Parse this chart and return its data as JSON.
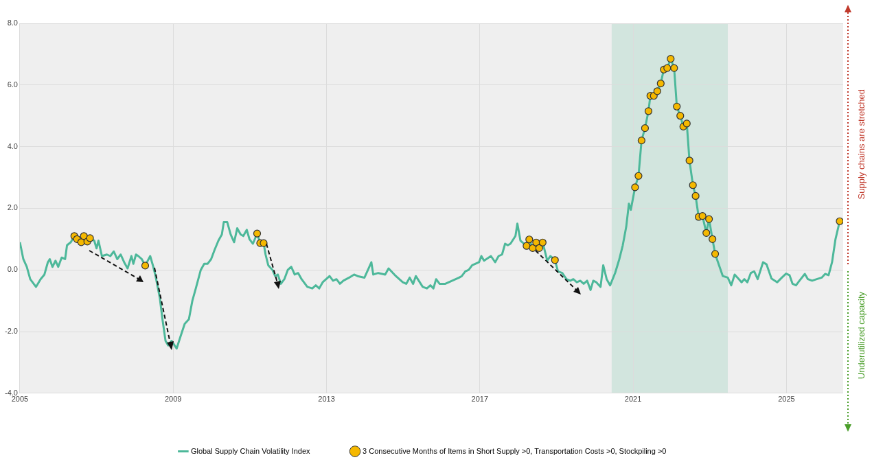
{
  "chart_data": {
    "type": "line",
    "xlim": [
      2005,
      2026.48
    ],
    "xticks": [
      2005,
      2009,
      2013,
      2017,
      2021,
      2025
    ],
    "ylim": [
      -4,
      8
    ],
    "yticks": [
      {
        "value": -4,
        "label": "-4.0"
      },
      {
        "value": -2,
        "label": "-2.0"
      },
      {
        "value": 0,
        "label": "0.0"
      },
      {
        "value": 2,
        "label": "2.0"
      },
      {
        "value": 4,
        "label": "4.0"
      },
      {
        "value": 6,
        "label": "6.0"
      },
      {
        "value": 8,
        "label": "8.0"
      }
    ],
    "grid": true,
    "legend": "bottom",
    "marker": "none",
    "bands": [
      {
        "axis": "x",
        "from": 2020.44,
        "to": 2023.47,
        "color": "#d2e5de"
      }
    ],
    "annotations": [
      "Supply chains are stretched",
      "Underutilized capacity"
    ],
    "series": [
      {
        "name": "Global Supply Chain Volatility Index",
        "color": "#4db89a",
        "x": [
          2005.0,
          2005.09,
          2005.18,
          2005.27,
          2005.42,
          2005.54,
          2005.64,
          2005.73,
          2005.78,
          2005.85,
          2005.93,
          2006.0,
          2006.09,
          2006.18,
          2006.23,
          2006.33,
          2006.42,
          2006.49,
          2006.6,
          2006.67,
          2006.76,
          2006.83,
          2006.94,
          2007.0,
          2007.05,
          2007.14,
          2007.27,
          2007.36,
          2007.45,
          2007.54,
          2007.63,
          2007.72,
          2007.81,
          2007.91,
          2007.96,
          2008.03,
          2008.09,
          2008.18,
          2008.27,
          2008.4,
          2008.47,
          2008.54,
          2008.65,
          2008.72,
          2008.8,
          2008.87,
          2008.96,
          2009.09,
          2009.18,
          2009.3,
          2009.41,
          2009.5,
          2009.59,
          2009.72,
          2009.81,
          2009.9,
          2009.99,
          2010.08,
          2010.18,
          2010.27,
          2010.32,
          2010.41,
          2010.5,
          2010.59,
          2010.67,
          2010.76,
          2010.83,
          2010.92,
          2010.99,
          2011.08,
          2011.19,
          2011.27,
          2011.36,
          2011.41,
          2011.48,
          2011.59,
          2011.66,
          2011.73,
          2011.81,
          2011.9,
          2011.99,
          2012.08,
          2012.17,
          2012.26,
          2012.35,
          2012.5,
          2012.63,
          2012.72,
          2012.81,
          2012.9,
          2013.08,
          2013.17,
          2013.26,
          2013.35,
          2013.44,
          2013.59,
          2013.72,
          2013.81,
          2013.99,
          2014.1,
          2014.17,
          2014.22,
          2014.35,
          2014.53,
          2014.62,
          2014.81,
          2014.9,
          2014.99,
          2015.08,
          2015.17,
          2015.26,
          2015.33,
          2015.51,
          2015.62,
          2015.71,
          2015.79,
          2015.86,
          2015.95,
          2016.1,
          2016.28,
          2016.46,
          2016.53,
          2016.62,
          2016.71,
          2016.8,
          2016.89,
          2016.98,
          2017.04,
          2017.11,
          2017.29,
          2017.4,
          2017.49,
          2017.58,
          2017.66,
          2017.73,
          2017.8,
          2017.93,
          2017.98,
          2018.06,
          2018.22,
          2018.29,
          2018.38,
          2018.47,
          2018.55,
          2018.64,
          2018.76,
          2018.84,
          2018.96,
          2019.04,
          2019.15,
          2019.26,
          2019.36,
          2019.44,
          2019.53,
          2019.62,
          2019.71,
          2019.8,
          2019.89,
          2019.96,
          2020.04,
          2020.15,
          2020.22,
          2020.31,
          2020.4,
          2020.53,
          2020.64,
          2020.73,
          2020.82,
          2020.89,
          2020.94,
          2021.05,
          2021.14,
          2021.22,
          2021.31,
          2021.4,
          2021.45,
          2021.54,
          2021.63,
          2021.72,
          2021.8,
          2021.89,
          2021.98,
          2022.07,
          2022.14,
          2022.23,
          2022.31,
          2022.4,
          2022.47,
          2022.56,
          2022.63,
          2022.71,
          2022.81,
          2022.91,
          2022.98,
          2023.07,
          2023.14,
          2023.2,
          2023.34,
          2023.47,
          2023.56,
          2023.65,
          2023.76,
          2023.83,
          2023.9,
          2023.98,
          2024.07,
          2024.16,
          2024.25,
          2024.39,
          2024.48,
          2024.61,
          2024.76,
          2024.88,
          2024.99,
          2025.08,
          2025.16,
          2025.25,
          2025.34,
          2025.48,
          2025.56,
          2025.67,
          2025.79,
          2025.92,
          2026.01,
          2026.1,
          2026.19,
          2026.28,
          2026.39
        ],
        "values": [
          0.9,
          0.35,
          0.1,
          -0.3,
          -0.55,
          -0.3,
          -0.15,
          0.25,
          0.35,
          0.1,
          0.3,
          0.1,
          0.4,
          0.35,
          0.8,
          0.9,
          1.1,
          1.0,
          0.9,
          1.1,
          0.92,
          1.03,
          0.95,
          0.7,
          0.95,
          0.45,
          0.5,
          0.45,
          0.6,
          0.35,
          0.5,
          0.25,
          0.05,
          0.45,
          0.2,
          0.5,
          0.45,
          0.35,
          0.14,
          0.45,
          0.15,
          -0.2,
          -0.9,
          -1.6,
          -2.3,
          -2.45,
          -2.3,
          -2.55,
          -2.2,
          -1.75,
          -1.6,
          -1.0,
          -0.6,
          0.0,
          0.2,
          0.2,
          0.35,
          0.65,
          0.95,
          1.15,
          1.55,
          1.55,
          1.15,
          0.9,
          1.35,
          1.15,
          1.1,
          1.3,
          1.0,
          0.85,
          1.18,
          0.87,
          0.87,
          0.5,
          0.15,
          0.0,
          -0.2,
          -0.15,
          -0.45,
          -0.3,
          0.0,
          0.1,
          -0.15,
          -0.1,
          -0.3,
          -0.55,
          -0.6,
          -0.5,
          -0.6,
          -0.4,
          -0.2,
          -0.35,
          -0.3,
          -0.45,
          -0.35,
          -0.25,
          -0.15,
          -0.2,
          -0.25,
          0.05,
          0.25,
          -0.15,
          -0.1,
          -0.15,
          0.05,
          -0.2,
          -0.3,
          -0.4,
          -0.45,
          -0.25,
          -0.45,
          -0.2,
          -0.55,
          -0.6,
          -0.5,
          -0.6,
          -0.3,
          -0.45,
          -0.45,
          -0.35,
          -0.25,
          -0.2,
          -0.05,
          0.0,
          0.15,
          0.2,
          0.25,
          0.45,
          0.3,
          0.45,
          0.25,
          0.45,
          0.5,
          0.85,
          0.8,
          0.85,
          1.1,
          1.5,
          0.95,
          0.78,
          0.99,
          0.71,
          0.89,
          0.71,
          0.89,
          0.3,
          0.45,
          0.32,
          -0.05,
          -0.1,
          -0.3,
          -0.35,
          -0.3,
          -0.4,
          -0.35,
          -0.45,
          -0.35,
          -0.65,
          -0.35,
          -0.4,
          -0.55,
          0.15,
          -0.3,
          -0.5,
          -0.1,
          0.35,
          0.8,
          1.4,
          2.15,
          1.95,
          2.68,
          3.05,
          4.2,
          4.6,
          5.15,
          5.65,
          5.65,
          5.8,
          6.05,
          6.5,
          6.55,
          6.85,
          6.55,
          5.3,
          5.0,
          4.65,
          4.75,
          3.55,
          2.75,
          2.4,
          1.72,
          1.75,
          1.2,
          1.65,
          1.0,
          0.52,
          0.3,
          -0.2,
          -0.25,
          -0.5,
          -0.15,
          -0.3,
          -0.4,
          -0.3,
          -0.4,
          -0.1,
          -0.05,
          -0.3,
          0.25,
          0.18,
          -0.28,
          -0.4,
          -0.25,
          -0.12,
          -0.17,
          -0.45,
          -0.5,
          -0.35,
          -0.13,
          -0.3,
          -0.35,
          -0.3,
          -0.25,
          -0.13,
          -0.17,
          0.25,
          1.0,
          1.58
        ]
      },
      {
        "name": "3 Consecutive Months of Items in Short Supply >0, Transportation Costs >0, Stockpiling >0",
        "type": "scatter",
        "marker": "circle",
        "color": "#f5b800",
        "x": [
          2006.42,
          2006.49,
          2006.6,
          2006.67,
          2006.76,
          2006.83,
          2008.27,
          2011.19,
          2011.27,
          2011.36,
          2018.22,
          2018.29,
          2018.38,
          2018.47,
          2018.55,
          2018.64,
          2018.96,
          2021.05,
          2021.14,
          2021.22,
          2021.31,
          2021.4,
          2021.45,
          2021.54,
          2021.63,
          2021.72,
          2021.8,
          2021.89,
          2021.98,
          2022.07,
          2022.14,
          2022.23,
          2022.31,
          2022.4,
          2022.47,
          2022.56,
          2022.63,
          2022.71,
          2022.81,
          2022.91,
          2022.98,
          2023.07,
          2023.14,
          2026.39
        ],
        "values": [
          1.1,
          1.0,
          0.9,
          1.1,
          0.92,
          1.03,
          0.14,
          1.18,
          0.87,
          0.87,
          0.78,
          0.99,
          0.71,
          0.89,
          0.71,
          0.89,
          0.32,
          2.68,
          3.05,
          4.2,
          4.6,
          5.15,
          5.65,
          5.65,
          5.8,
          6.05,
          6.5,
          6.55,
          6.85,
          6.55,
          5.3,
          5.0,
          4.65,
          4.75,
          3.55,
          2.75,
          2.4,
          1.72,
          1.75,
          1.2,
          1.65,
          1.0,
          0.52,
          1.58
        ]
      }
    ]
  }
}
